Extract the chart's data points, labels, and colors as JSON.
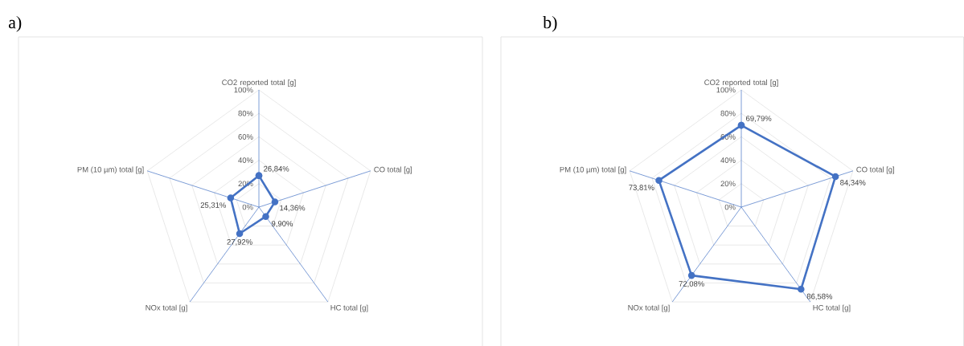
{
  "chart_data": [
    {
      "type": "radar",
      "title": "a)",
      "categories": [
        "CO2 reported total [g]",
        "CO total [g]",
        "HC total [g]",
        "NOx total [g]",
        "PM (10 µm) total [g]"
      ],
      "values": [
        26.84,
        14.36,
        9.9,
        27.92,
        25.31
      ],
      "color": "#4472c4",
      "value_labels": [
        "26,84%",
        "14,36%",
        "9,90%",
        "27,92%",
        "25,31%"
      ],
      "ylim": [
        0,
        100
      ],
      "yticks": [
        {
          "value": 0,
          "label": "0%"
        },
        {
          "value": 20,
          "label": "20%"
        },
        {
          "value": 40,
          "label": "40%"
        },
        {
          "value": 60,
          "label": "60%"
        },
        {
          "value": 80,
          "label": "80%"
        },
        {
          "value": 100,
          "label": "100%"
        }
      ],
      "grid": true,
      "marker": "circle"
    },
    {
      "type": "radar",
      "title": "b)",
      "categories": [
        "CO2 reported total [g]",
        "CO total [g]",
        "HC total [g]",
        "NOx total [g]",
        "PM (10 µm) total [g]"
      ],
      "values": [
        69.79,
        84.34,
        86.58,
        72.08,
        73.81
      ],
      "color": "#4472c4",
      "value_labels": [
        "69,79%",
        "84,34%",
        "86,58%",
        "72,08%",
        "73,81%"
      ],
      "ylim": [
        0,
        100
      ],
      "yticks": [
        {
          "value": 0,
          "label": "0%"
        },
        {
          "value": 20,
          "label": "20%"
        },
        {
          "value": 40,
          "label": "40%"
        },
        {
          "value": 60,
          "label": "60%"
        },
        {
          "value": 80,
          "label": "80%"
        },
        {
          "value": 100,
          "label": "100%"
        }
      ],
      "grid": true,
      "marker": "circle"
    }
  ]
}
